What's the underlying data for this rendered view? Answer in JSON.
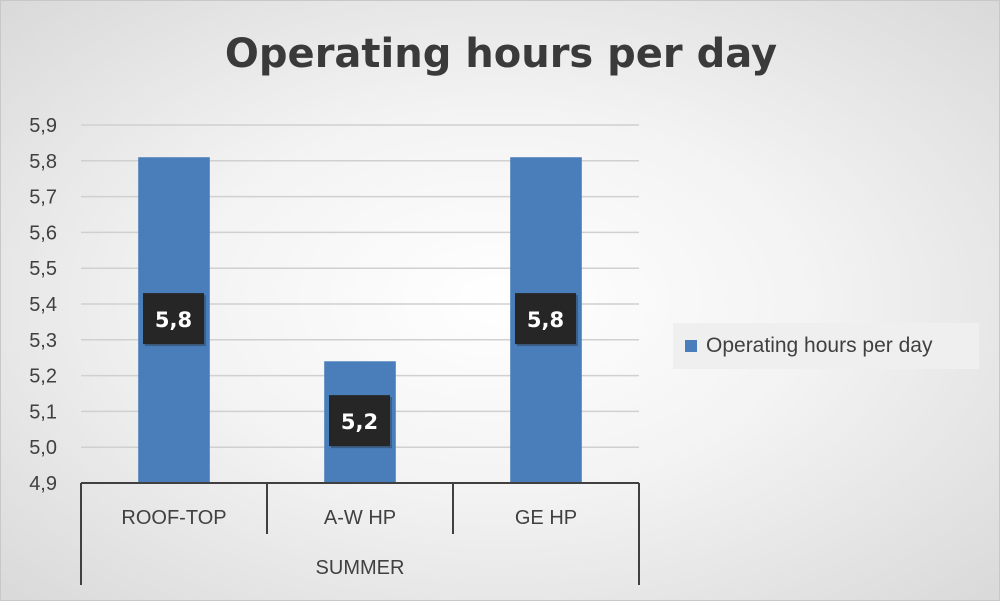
{
  "chart_data": {
    "type": "bar",
    "title": "Operating hours per day",
    "categories": [
      "ROOF-TOP",
      "A-W HP",
      "GE HP"
    ],
    "group_label": "SUMMER",
    "series": [
      {
        "name": "Operating hours per day",
        "values": [
          5.81,
          5.24,
          5.81
        ],
        "labels": [
          "5,8",
          "5,2",
          "5,8"
        ]
      }
    ],
    "ylim": [
      4.9,
      5.9
    ],
    "y_ticks": [
      "4,9",
      "5,0",
      "5,1",
      "5,2",
      "5,3",
      "5,4",
      "5,5",
      "5,6",
      "5,7",
      "5,8",
      "5,9"
    ],
    "grid": true,
    "legend_position": "right",
    "colors": {
      "bar": "#4a7ebb",
      "data_label_bg": "#262626",
      "grid": "#d0d0d0",
      "axis": "#404040"
    }
  }
}
